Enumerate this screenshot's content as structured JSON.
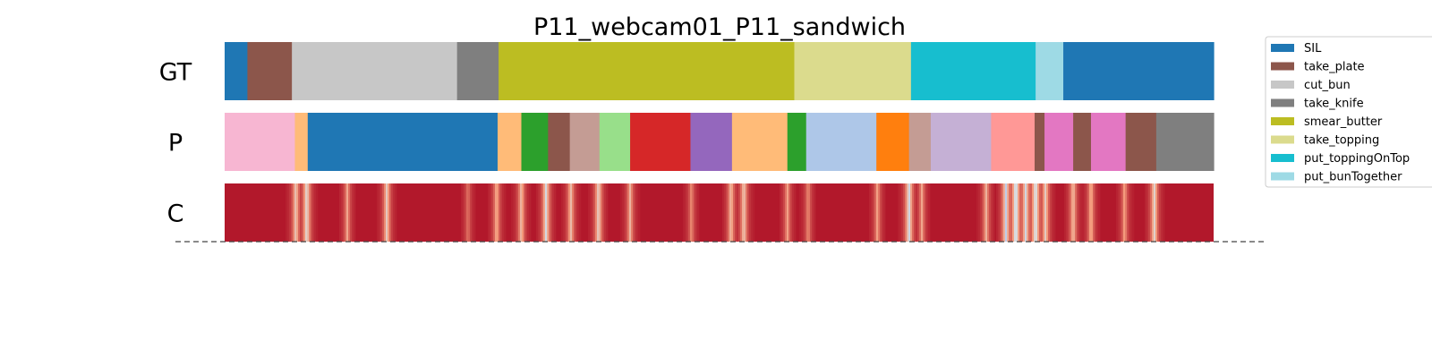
{
  "chart_data": {
    "type": "segmentation",
    "title": "P11_webcam01_P11_sandwich",
    "legend_placement": "top-right",
    "legend": [
      {
        "name": "SIL",
        "color": "#1f77b4"
      },
      {
        "name": "take_plate",
        "color": "#8c564b"
      },
      {
        "name": "cut_bun",
        "color": "#c7c7c7"
      },
      {
        "name": "take_knife",
        "color": "#7f7f7f"
      },
      {
        "name": "smear_butter",
        "color": "#bcbd22"
      },
      {
        "name": "take_topping",
        "color": "#dbdb8d"
      },
      {
        "name": "put_toppingOnTop",
        "color": "#17becf"
      },
      {
        "name": "put_bunTogether",
        "color": "#9edae5"
      }
    ],
    "rows": [
      {
        "label": "GT",
        "segments": [
          {
            "end": 0.023,
            "color": "#1f77b4"
          },
          {
            "end": 0.068,
            "color": "#8c564b"
          },
          {
            "end": 0.235,
            "color": "#c7c7c7"
          },
          {
            "end": 0.277,
            "color": "#7f7f7f"
          },
          {
            "end": 0.576,
            "color": "#bcbd22"
          },
          {
            "end": 0.694,
            "color": "#dbdb8d"
          },
          {
            "end": 0.82,
            "color": "#17becf"
          },
          {
            "end": 0.848,
            "color": "#9edae5"
          },
          {
            "end": 1.0,
            "color": "#1f77b4"
          }
        ]
      },
      {
        "label": "P",
        "segments": [
          {
            "end": 0.071,
            "color": "#f7b6d2"
          },
          {
            "end": 0.084,
            "color": "#ffbb78"
          },
          {
            "end": 0.276,
            "color": "#1f77b4"
          },
          {
            "end": 0.3,
            "color": "#ffbb78"
          },
          {
            "end": 0.327,
            "color": "#2ca02c"
          },
          {
            "end": 0.349,
            "color": "#8c564b"
          },
          {
            "end": 0.379,
            "color": "#c49c94"
          },
          {
            "end": 0.41,
            "color": "#98df8a"
          },
          {
            "end": 0.471,
            "color": "#d62728"
          },
          {
            "end": 0.513,
            "color": "#9467bd"
          },
          {
            "end": 0.569,
            "color": "#ffbb78"
          },
          {
            "end": 0.588,
            "color": "#2ca02c"
          },
          {
            "end": 0.659,
            "color": "#aec7e8"
          },
          {
            "end": 0.692,
            "color": "#ff7f0e"
          },
          {
            "end": 0.714,
            "color": "#c49c94"
          },
          {
            "end": 0.775,
            "color": "#c5b0d5"
          },
          {
            "end": 0.819,
            "color": "#ff9896"
          },
          {
            "end": 0.829,
            "color": "#8c564b"
          },
          {
            "end": 0.858,
            "color": "#e377c2"
          },
          {
            "end": 0.876,
            "color": "#8c564b"
          },
          {
            "end": 0.911,
            "color": "#e377c2"
          },
          {
            "end": 0.942,
            "color": "#8c564b"
          },
          {
            "end": 1.0,
            "color": "#7f7f7f"
          }
        ]
      }
    ],
    "confidence_row": {
      "label": "C",
      "base_color": "#b2182b",
      "colormap": "coolwarm",
      "dips": [
        {
          "at": 0.072,
          "value": 0.55
        },
        {
          "at": 0.083,
          "value": 0.45
        },
        {
          "at": 0.124,
          "value": 0.7
        },
        {
          "at": 0.164,
          "value": 0.55
        },
        {
          "at": 0.246,
          "value": 0.8
        },
        {
          "at": 0.275,
          "value": 0.65
        },
        {
          "at": 0.3,
          "value": 0.6
        },
        {
          "at": 0.325,
          "value": 0.45
        },
        {
          "at": 0.35,
          "value": 0.6
        },
        {
          "at": 0.378,
          "value": 0.5
        },
        {
          "at": 0.41,
          "value": 0.65
        },
        {
          "at": 0.472,
          "value": 0.75
        },
        {
          "at": 0.512,
          "value": 0.6
        },
        {
          "at": 0.525,
          "value": 0.55
        },
        {
          "at": 0.569,
          "value": 0.7
        },
        {
          "at": 0.59,
          "value": 0.75
        },
        {
          "at": 0.66,
          "value": 0.7
        },
        {
          "at": 0.692,
          "value": 0.4
        },
        {
          "at": 0.705,
          "value": 0.7
        },
        {
          "at": 0.77,
          "value": 0.65
        },
        {
          "at": 0.79,
          "value": 0.4
        },
        {
          "at": 0.8,
          "value": 0.3
        },
        {
          "at": 0.81,
          "value": 0.45
        },
        {
          "at": 0.82,
          "value": 0.35
        },
        {
          "at": 0.83,
          "value": 0.55
        },
        {
          "at": 0.858,
          "value": 0.6
        },
        {
          "at": 0.876,
          "value": 0.65
        },
        {
          "at": 0.91,
          "value": 0.7
        },
        {
          "at": 0.94,
          "value": 0.5
        }
      ]
    }
  }
}
